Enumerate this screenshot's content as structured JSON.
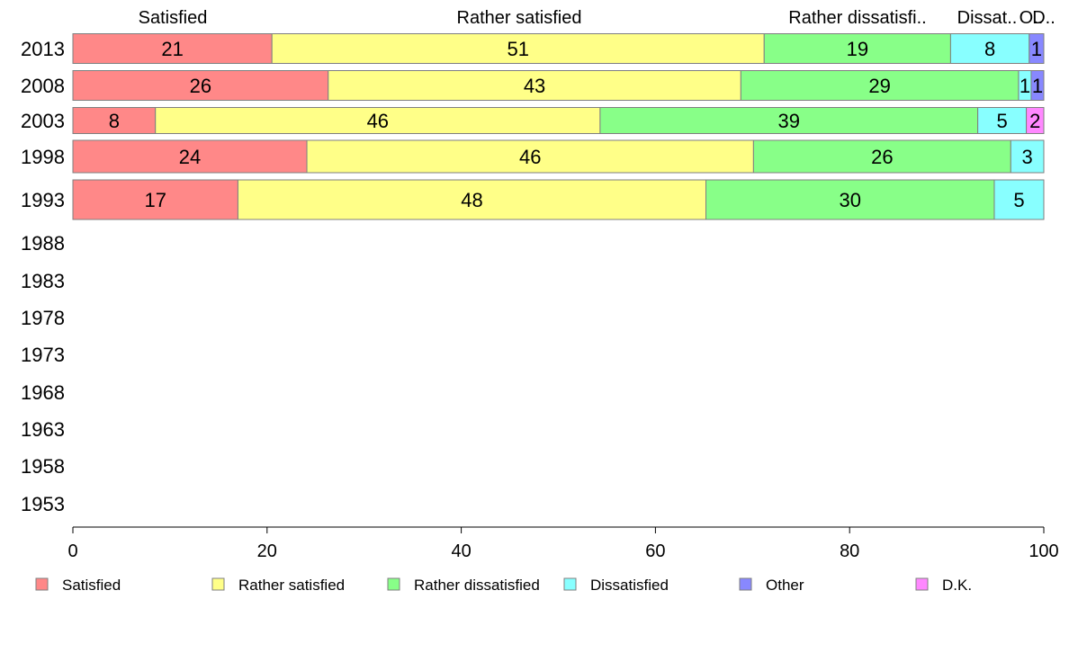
{
  "chart_data": {
    "type": "bar",
    "orientation": "horizontal",
    "stacked": true,
    "title": "",
    "xlabel": "",
    "ylabel": "",
    "xlim": [
      0,
      100
    ],
    "x_ticks": [
      "0",
      "20",
      "40",
      "60",
      "80",
      "100"
    ],
    "categories": [
      "2013",
      "2008",
      "2003",
      "1998",
      "1993",
      "1988",
      "1983",
      "1978",
      "1973",
      "1968",
      "1963",
      "1958",
      "1953"
    ],
    "top_labels": [
      "Satisfied",
      "Rather satisfied",
      "Rather dissatisfi..",
      "Dissat..",
      "O..",
      "D.."
    ],
    "series": [
      {
        "name": "Satisfied",
        "color": "#ff8888",
        "values": [
          20.5,
          26.3,
          8.5,
          24.1,
          17.0,
          null,
          null,
          null,
          null,
          null,
          null,
          null,
          null
        ],
        "labels": [
          "21",
          "26",
          "8",
          "24",
          "17",
          "",
          "",
          "",
          "",
          "",
          "",
          "",
          ""
        ]
      },
      {
        "name": "Rather satisfied",
        "color": "#ffff88",
        "values": [
          50.7,
          42.5,
          45.8,
          46.0,
          48.2,
          null,
          null,
          null,
          null,
          null,
          null,
          null,
          null
        ],
        "labels": [
          "51",
          "43",
          "46",
          "46",
          "48",
          "",
          "",
          "",
          "",
          "",
          "",
          "",
          ""
        ]
      },
      {
        "name": "Rather dissatisfied",
        "color": "#88ff88",
        "values": [
          19.2,
          28.6,
          38.9,
          26.5,
          29.7,
          null,
          null,
          null,
          null,
          null,
          null,
          null,
          null
        ],
        "labels": [
          "19",
          "29",
          "39",
          "26",
          "30",
          "",
          "",
          "",
          "",
          "",
          "",
          "",
          ""
        ]
      },
      {
        "name": "Dissatisfied",
        "color": "#88ffff",
        "values": [
          8.1,
          1.3,
          5.0,
          3.4,
          5.1,
          null,
          null,
          null,
          null,
          null,
          null,
          null,
          null
        ],
        "labels": [
          "8",
          "1",
          "5",
          "3",
          "5",
          "",
          "",
          "",
          "",
          "",
          "",
          "",
          ""
        ]
      },
      {
        "name": "Other",
        "color": "#8888ff",
        "values": [
          1.5,
          1.3,
          0,
          0,
          0,
          null,
          null,
          null,
          null,
          null,
          null,
          null,
          null
        ],
        "labels": [
          "1",
          "1",
          "",
          "",
          "",
          "",
          "",
          "",
          "",
          "",
          "",
          "",
          ""
        ]
      },
      {
        "name": "D.K.",
        "color": "#ff88ff",
        "values": [
          0,
          0,
          1.8,
          0,
          0,
          null,
          null,
          null,
          null,
          null,
          null,
          null,
          null
        ],
        "labels": [
          "",
          "",
          "2",
          "",
          "",
          "",
          "",
          "",
          "",
          "",
          "",
          "",
          ""
        ]
      }
    ],
    "grid": false,
    "legend_position": "bottom"
  }
}
